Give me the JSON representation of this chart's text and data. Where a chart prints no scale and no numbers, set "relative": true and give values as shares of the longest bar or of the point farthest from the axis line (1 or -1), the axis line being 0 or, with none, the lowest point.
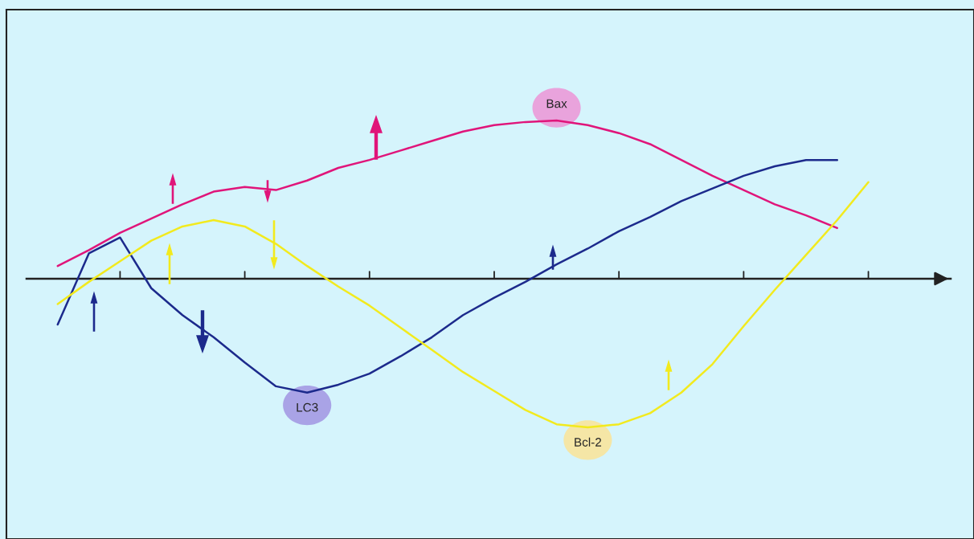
{
  "chart_data": {
    "type": "line",
    "relative": true,
    "categories": [
      null,
      null,
      null,
      null,
      null,
      null,
      null,
      null,
      null,
      null,
      null,
      null,
      null,
      null,
      null,
      null,
      null,
      null,
      null,
      null,
      null,
      null,
      null,
      null,
      null,
      null,
      null
    ],
    "series": [
      {
        "name": "Bax",
        "color": "#e0157a",
        "values": [
          0.08,
          0.18,
          0.29,
          0.38,
          0.47,
          0.55,
          0.58,
          0.56,
          0.62,
          0.7,
          0.75,
          0.81,
          0.87,
          0.93,
          0.97,
          0.99,
          1.0,
          0.97,
          0.92,
          0.85,
          0.75,
          0.65,
          0.56,
          0.47,
          0.4,
          0.32,
          null
        ]
      },
      {
        "name": "LC3",
        "color": "#1c2a8c",
        "values": [
          -0.29,
          0.16,
          0.26,
          -0.06,
          -0.23,
          -0.37,
          -0.53,
          -0.68,
          -0.72,
          -0.67,
          -0.6,
          -0.49,
          -0.37,
          -0.23,
          -0.12,
          -0.02,
          0.09,
          0.19,
          0.3,
          0.39,
          0.49,
          0.57,
          0.65,
          0.71,
          0.75,
          0.75,
          null
        ]
      },
      {
        "name": "Bcl-2",
        "color": "#f2ea1e",
        "values": [
          -0.16,
          -0.02,
          0.11,
          0.24,
          0.33,
          0.37,
          0.33,
          0.22,
          0.08,
          -0.05,
          -0.17,
          -0.31,
          -0.45,
          -0.59,
          -0.71,
          -0.83,
          -0.92,
          -0.94,
          -0.92,
          -0.85,
          -0.72,
          -0.54,
          -0.3,
          -0.07,
          0.15,
          0.37,
          0.61
        ]
      }
    ]
  }
}
